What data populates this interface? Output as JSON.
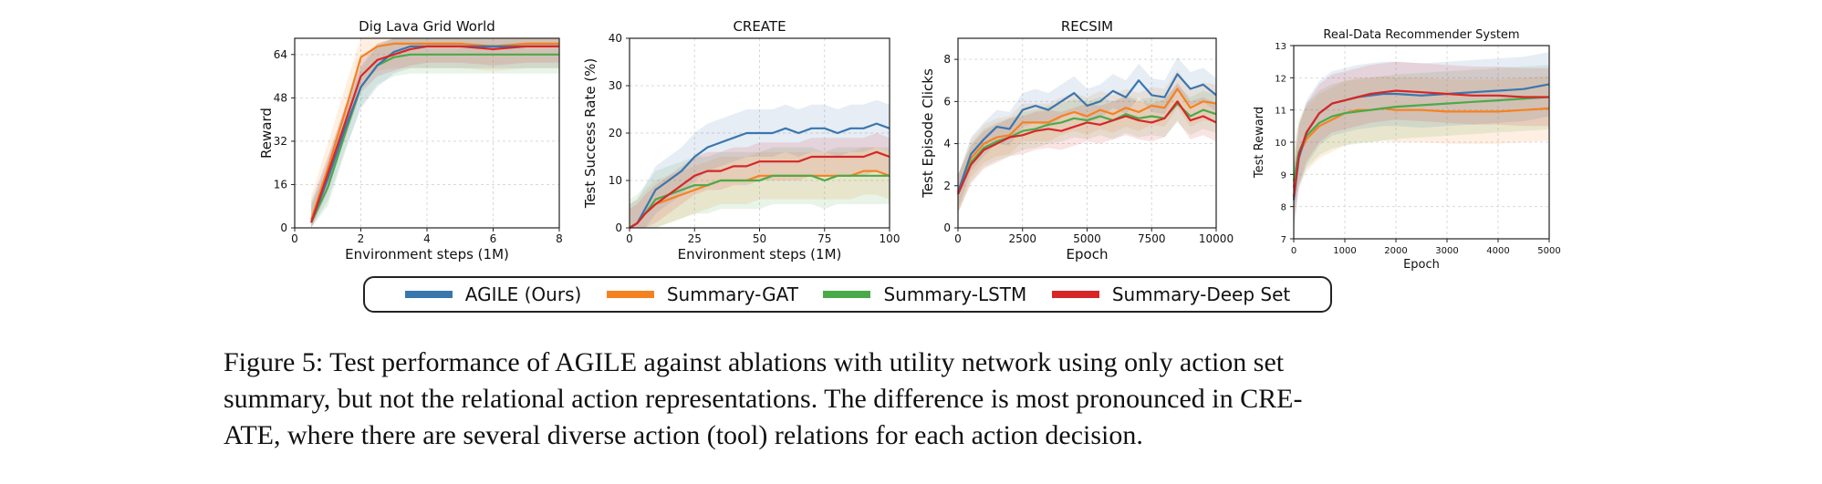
{
  "chart_data": [
    {
      "type": "line",
      "title": "Dig Lava Grid World",
      "xlabel": "Environment steps (1M)",
      "ylabel": "Reward",
      "xlim": [
        0,
        8
      ],
      "ylim": [
        0,
        70
      ],
      "xticks": [
        "0",
        "2",
        "4",
        "6",
        "8"
      ],
      "yticks": [
        "0",
        "16",
        "32",
        "48",
        "64"
      ],
      "x": [
        0.5,
        1.0,
        1.5,
        2.0,
        2.5,
        3.0,
        3.5,
        4.0,
        5.0,
        6.0,
        7.0,
        8.0
      ],
      "series": [
        {
          "name": "AGILE (Ours)",
          "values": [
            2,
            18,
            36,
            52,
            60,
            65,
            67,
            67,
            67,
            67,
            67,
            67
          ],
          "band": 8
        },
        {
          "name": "Summary-GAT",
          "values": [
            3,
            22,
            42,
            63,
            67,
            68,
            68,
            68,
            68,
            67,
            68,
            68
          ],
          "band": 9
        },
        {
          "name": "Summary-LSTM",
          "values": [
            2,
            15,
            34,
            52,
            60,
            63,
            64,
            64,
            64,
            64,
            64,
            64
          ],
          "band": 7
        },
        {
          "name": "Summary-Deep Set",
          "values": [
            2,
            20,
            38,
            56,
            62,
            64,
            66,
            67,
            67,
            66,
            67,
            67
          ],
          "band": 6
        }
      ]
    },
    {
      "type": "line",
      "title": "CREATE",
      "xlabel": "Environment steps (1M)",
      "ylabel": "Test Success Rate (%)",
      "xlim": [
        0,
        100
      ],
      "ylim": [
        0,
        40
      ],
      "xticks": [
        "0",
        "25",
        "50",
        "75",
        "100"
      ],
      "yticks": [
        "0",
        "10",
        "20",
        "30",
        "40"
      ],
      "x": [
        0,
        3,
        6,
        10,
        15,
        20,
        25,
        30,
        35,
        40,
        45,
        50,
        55,
        60,
        65,
        70,
        75,
        80,
        85,
        90,
        95,
        100
      ],
      "series": [
        {
          "name": "AGILE (Ours)",
          "values": [
            0,
            1,
            4,
            8,
            10,
            12,
            15,
            17,
            18,
            19,
            20,
            20,
            20,
            21,
            20,
            21,
            21,
            20,
            21,
            21,
            22,
            21
          ],
          "band": 5
        },
        {
          "name": "Summary-GAT",
          "values": [
            0,
            1,
            3,
            5,
            6,
            7,
            8,
            9,
            10,
            10,
            10,
            11,
            11,
            11,
            11,
            11,
            11,
            11,
            11,
            12,
            12,
            11
          ],
          "band": 5
        },
        {
          "name": "Summary-LSTM",
          "values": [
            0,
            1,
            3,
            6,
            7,
            8,
            9,
            9,
            10,
            10,
            10,
            10,
            11,
            11,
            11,
            11,
            10,
            11,
            11,
            11,
            11,
            11
          ],
          "band": 6
        },
        {
          "name": "Summary-Deep Set",
          "values": [
            0,
            1,
            3,
            5,
            7,
            9,
            11,
            12,
            12,
            13,
            13,
            14,
            14,
            14,
            14,
            15,
            15,
            15,
            15,
            15,
            16,
            15
          ],
          "band": 4
        }
      ]
    },
    {
      "type": "line",
      "title": "RECSIM",
      "xlabel": "Epoch",
      "ylabel": "Test Episode Clicks",
      "xlim": [
        0,
        10000
      ],
      "ylim": [
        0,
        9
      ],
      "xticks": [
        "0",
        "2500",
        "5000",
        "7500",
        "10000"
      ],
      "yticks": [
        "0",
        "2",
        "4",
        "6",
        "8"
      ],
      "x": [
        0,
        500,
        1000,
        1500,
        2000,
        2500,
        3000,
        3500,
        4000,
        4500,
        5000,
        5500,
        6000,
        6500,
        7000,
        7500,
        8000,
        8500,
        9000,
        9500,
        10000
      ],
      "series": [
        {
          "name": "AGILE (Ours)",
          "values": [
            1.7,
            3.5,
            4.2,
            4.8,
            4.7,
            5.6,
            5.8,
            5.6,
            6.0,
            6.4,
            5.8,
            6.0,
            6.5,
            6.2,
            7.0,
            6.3,
            6.2,
            7.3,
            6.6,
            6.8,
            6.3
          ],
          "band": 0.8
        },
        {
          "name": "Summary-GAT",
          "values": [
            1.6,
            3.3,
            4.0,
            4.3,
            4.4,
            5.0,
            5.0,
            5.0,
            5.3,
            5.5,
            5.3,
            5.6,
            5.4,
            5.7,
            5.5,
            5.8,
            5.7,
            6.6,
            5.7,
            6.0,
            5.9
          ],
          "band": 0.9
        },
        {
          "name": "Summary-LSTM",
          "values": [
            1.6,
            3.1,
            3.8,
            4.1,
            4.3,
            4.6,
            4.7,
            4.9,
            5.0,
            5.2,
            5.1,
            5.3,
            5.1,
            5.4,
            5.2,
            5.3,
            5.2,
            5.9,
            5.3,
            5.6,
            5.4
          ],
          "band": 0.9
        },
        {
          "name": "Summary-Deep Set",
          "values": [
            1.6,
            3.0,
            3.7,
            4.0,
            4.3,
            4.4,
            4.6,
            4.7,
            4.6,
            4.8,
            5.0,
            4.9,
            5.1,
            5.3,
            5.1,
            5.0,
            5.2,
            6.0,
            5.1,
            5.3,
            5.0
          ],
          "band": 0.9
        }
      ]
    },
    {
      "type": "line",
      "title": "Real-Data Recommender System",
      "xlabel": "Epoch",
      "ylabel": "Test Reward",
      "xlim": [
        0,
        5000
      ],
      "ylim": [
        7,
        13
      ],
      "xticks": [
        "0",
        "1000",
        "2000",
        "3000",
        "4000",
        "5000"
      ],
      "yticks": [
        "7",
        "8",
        "9",
        "10",
        "11",
        "12",
        "13"
      ],
      "x": [
        0,
        100,
        250,
        500,
        750,
        1000,
        1250,
        1500,
        1750,
        2000,
        2500,
        3000,
        3500,
        4000,
        4500,
        5000
      ],
      "series": [
        {
          "name": "AGILE (Ours)",
          "values": [
            8.2,
            9.5,
            10.3,
            10.9,
            11.2,
            11.3,
            11.4,
            11.45,
            11.5,
            11.5,
            11.45,
            11.5,
            11.55,
            11.6,
            11.65,
            11.8
          ],
          "band": 1.0
        },
        {
          "name": "Summary-GAT",
          "values": [
            8.6,
            9.6,
            10.1,
            10.5,
            10.7,
            10.9,
            11.0,
            11.0,
            11.05,
            11.0,
            11.0,
            10.95,
            10.95,
            10.95,
            11.0,
            11.05
          ],
          "band": 1.0
        },
        {
          "name": "Summary-LSTM",
          "values": [
            8.8,
            9.7,
            10.2,
            10.6,
            10.8,
            10.9,
            10.95,
            11.0,
            11.05,
            11.1,
            11.15,
            11.2,
            11.25,
            11.3,
            11.35,
            11.4
          ],
          "band": 1.0
        },
        {
          "name": "Summary-Deep Set",
          "values": [
            8.3,
            9.6,
            10.3,
            10.9,
            11.2,
            11.3,
            11.4,
            11.5,
            11.55,
            11.6,
            11.55,
            11.5,
            11.45,
            11.45,
            11.4,
            11.4
          ],
          "band": 0.9
        }
      ]
    }
  ],
  "colors": {
    "AGILE (Ours)": "#3a76ae",
    "Summary-GAT": "#f58220",
    "Summary-LSTM": "#4aaa49",
    "Summary-Deep Set": "#d62728"
  },
  "legend": {
    "items": [
      {
        "label": "AGILE (Ours)",
        "color": "#3a76ae"
      },
      {
        "label": "Summary-GAT",
        "color": "#f58220"
      },
      {
        "label": "Summary-LSTM",
        "color": "#4aaa49"
      },
      {
        "label": "Summary-Deep Set",
        "color": "#d62728"
      }
    ]
  },
  "caption": {
    "line1": "Figure 5: Test performance of AGILE against ablations with utility network using only action set",
    "line2": "summary, but not the relational action representations. The difference is most pronounced in CRE-",
    "line3": "ATE, where there are several diverse action (tool) relations for each action decision."
  }
}
